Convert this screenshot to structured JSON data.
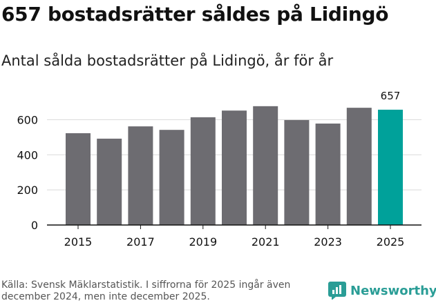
{
  "title": "657 bostadsrätter såldes på Lidingö",
  "subtitle": "Antal sålda bostadsrätter på Lidingö, år för år",
  "source": "Källa: Svensk Mäklarstatistik. I siffrorna för 2025 ingår även december 2024, men inte december 2025.",
  "brand": "Newsworthy",
  "colors": {
    "bar": "#6d6c71",
    "highlight": "#00a19a",
    "grid": "#d9d9d9",
    "axis": "#111111"
  },
  "chart_data": {
    "type": "bar",
    "title": "657 bostadsrätter såldes på Lidingö",
    "subtitle": "Antal sålda bostadsrätter på Lidingö, år för år",
    "xlabel": "",
    "ylabel": "",
    "categories": [
      "2015",
      "2016",
      "2017",
      "2018",
      "2019",
      "2020",
      "2021",
      "2022",
      "2023",
      "2024",
      "2025"
    ],
    "values": [
      523,
      492,
      562,
      542,
      614,
      652,
      677,
      598,
      578,
      668,
      657
    ],
    "highlight_index": 10,
    "data_labels": [
      {
        "index": 10,
        "text": "657"
      }
    ],
    "x_tick_labels": [
      "2015",
      "2017",
      "2019",
      "2021",
      "2023",
      "2025"
    ],
    "y_ticks": [
      0,
      200,
      400,
      600
    ],
    "ylim": [
      0,
      700
    ],
    "grid": true
  }
}
